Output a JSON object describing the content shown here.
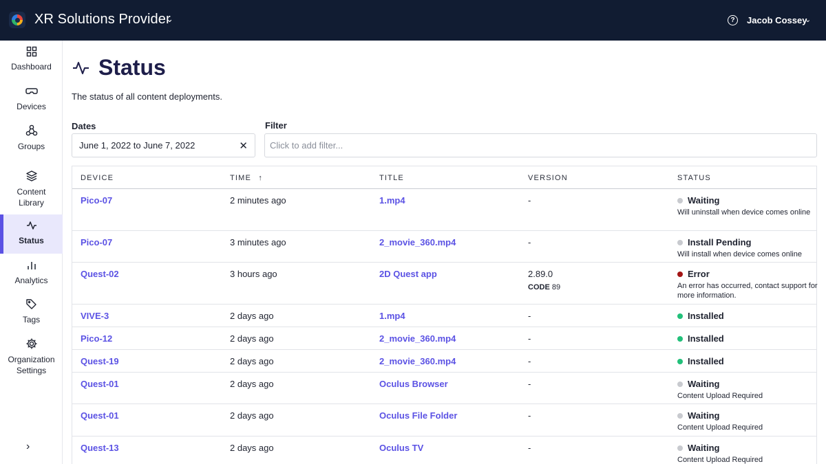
{
  "header": {
    "org_name": "XR Solutions Provider",
    "user_name": "Jacob Cossey",
    "help_symbol": "?"
  },
  "sidebar": {
    "items": [
      {
        "label": "Dashboard",
        "icon": "grid-icon"
      },
      {
        "label": "Devices",
        "icon": "headset-icon"
      },
      {
        "label": "Groups",
        "icon": "groups-icon"
      },
      {
        "label": "Content Library",
        "icon": "layers-icon"
      },
      {
        "label": "Status",
        "icon": "activity-icon",
        "active": true
      },
      {
        "label": "Analytics",
        "icon": "bar-chart-icon"
      },
      {
        "label": "Tags",
        "icon": "tag-icon"
      },
      {
        "label": "Organization Settings",
        "icon": "gear-icon"
      }
    ],
    "collapse_icon": "chevron-right-icon"
  },
  "page": {
    "title": "Status",
    "subtitle": "The status of all content deployments."
  },
  "filters": {
    "dates_label": "Dates",
    "dates_value": "June 1, 2022 to June 7, 2022",
    "filter_label": "Filter",
    "filter_placeholder": "Click to add filter..."
  },
  "table": {
    "columns": [
      "Device",
      "Time",
      "Title",
      "Version",
      "Status"
    ],
    "sort_indicator": "↑",
    "rows": [
      {
        "device": "Pico-07",
        "time": "2 minutes ago",
        "title": "1.mp4",
        "version": "-",
        "status": "Waiting",
        "status_color": "#c8cacf",
        "detail": "Will uninstall when device comes online"
      },
      {
        "device": "Pico-07",
        "time": "3 minutes ago",
        "title": "2_movie_360.mp4",
        "version": "-",
        "status": "Install Pending",
        "status_color": "#c8cacf",
        "detail": "Will install when device comes online"
      },
      {
        "device": "Quest-02",
        "time": "3 hours ago",
        "title": "2D Quest app",
        "version": "2.89.0",
        "code_label": "CODE",
        "code": "89",
        "status": "Error",
        "status_color": "#a31515",
        "detail": "An error has occurred, contact support for more information."
      },
      {
        "device": "VIVE-3",
        "time": "2 days ago",
        "title": "1.mp4",
        "version": "-",
        "status": "Installed",
        "status_color": "#22c07a",
        "detail": ""
      },
      {
        "device": "Pico-12",
        "time": "2 days ago",
        "title": "2_movie_360.mp4",
        "version": "-",
        "status": "Installed",
        "status_color": "#22c07a",
        "detail": ""
      },
      {
        "device": "Quest-19",
        "time": "2 days ago",
        "title": "2_movie_360.mp4",
        "version": "-",
        "status": "Installed",
        "status_color": "#22c07a",
        "detail": ""
      },
      {
        "device": "Quest-01",
        "time": "2 days ago",
        "title": "Oculus Browser",
        "version": "-",
        "status": "Waiting",
        "status_color": "#c8cacf",
        "detail": "Content Upload Required"
      },
      {
        "device": "Quest-01",
        "time": "2 days ago",
        "title": "Oculus File Folder",
        "version": "-",
        "status": "Waiting",
        "status_color": "#c8cacf",
        "detail": "Content Upload Required"
      },
      {
        "device": "Quest-13",
        "time": "2 days ago",
        "title": "Oculus TV",
        "version": "-",
        "status": "Waiting",
        "status_color": "#c8cacf",
        "detail": "Content Upload Required"
      }
    ]
  }
}
